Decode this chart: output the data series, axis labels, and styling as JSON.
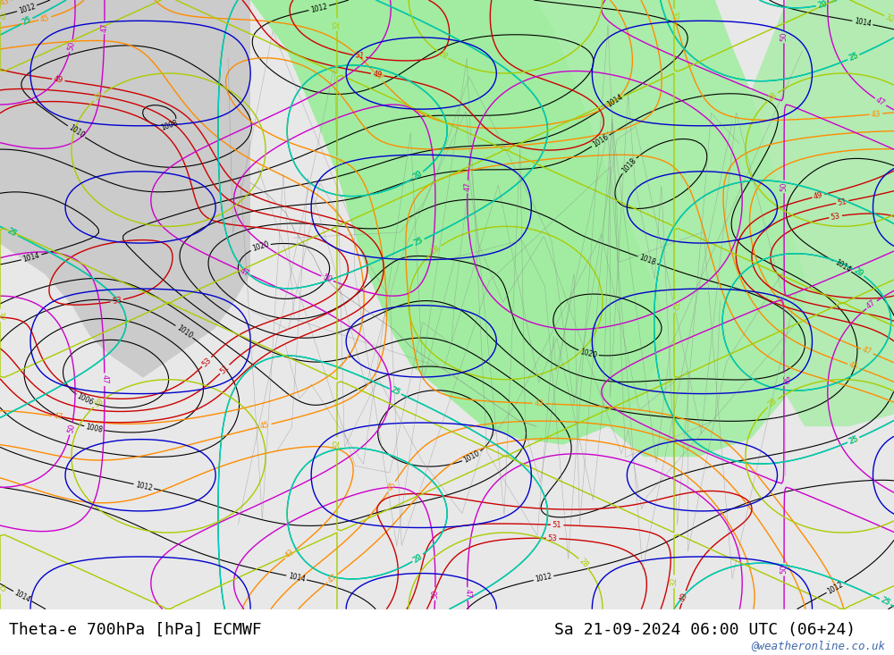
{
  "title_left": "Theta-e 700hPa [hPa] ECMWF",
  "title_right": "Sa 21-09-2024 06:00 UTC (06+24)",
  "watermark": "@weatheronline.co.uk",
  "fig_width": 10.0,
  "fig_height": 7.33,
  "bg_color_main": "#e8e8e8",
  "bg_color_map": "#d0d0d0",
  "map_green": "#90ee90",
  "title_font_size": 13,
  "watermark_color": "#4169aa",
  "watermark_font_size": 9,
  "bottom_bar_color": "#ffffff",
  "contour_black_color": "#000000",
  "contour_orange_color": "#ff8c00",
  "contour_red_color": "#cc0000",
  "contour_magenta_color": "#cc00cc",
  "contour_green_color": "#00aa00",
  "contour_cyan_color": "#00cccc",
  "contour_yellow_color": "#cccc00",
  "contour_blue_color": "#0000cc"
}
